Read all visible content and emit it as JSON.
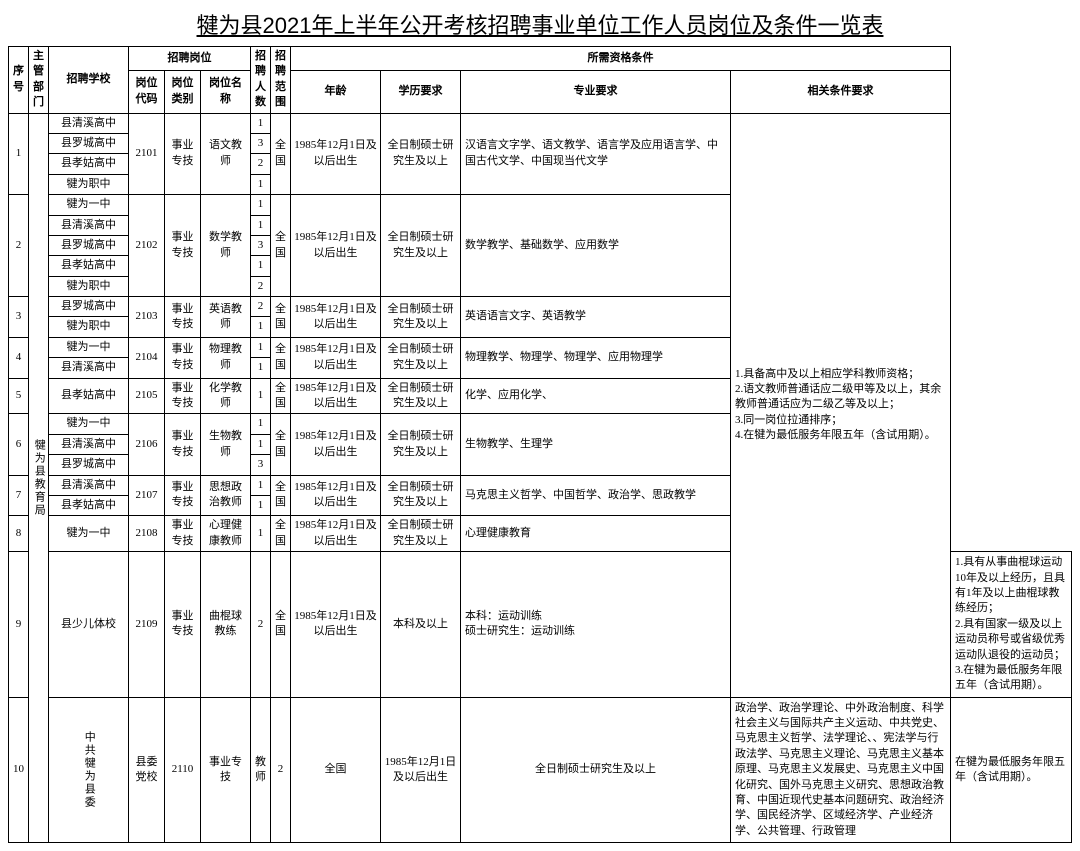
{
  "title": "犍为县2021年上半年公开考核招聘事业单位工作人员岗位及条件一览表",
  "headers": {
    "seq": "序号",
    "dept": "主管部门",
    "school": "招聘学校",
    "position_group": "招聘岗位",
    "code": "岗位代码",
    "type": "岗位类别",
    "name": "岗位名称",
    "count": "招聘人数",
    "scope": "招聘范围",
    "qualification_group": "所需资格条件",
    "age": "年龄",
    "edu": "学历要求",
    "major": "专业要求",
    "req": "相关条件要求"
  },
  "dept1": "犍为县教育局",
  "dept2": "中共犍为县委",
  "age_text": "1985年12月1日及以后出生",
  "edu_text": "全日制硕士研究生及以上",
  "scope_text": "全国",
  "type_text": "事业专技",
  "req_main": "1.具备高中及以上相应学科教师资格；\n2.语文教师普通话应二级甲等及以上，其余教师普通话应为二级乙等及以上；\n3.同一岗位拉通排序；\n4.在犍为最低服务年限五年（含试用期）。",
  "r1": {
    "schools": [
      "县清溪高中",
      "县罗城高中",
      "县孝姑高中",
      "犍为职中"
    ],
    "code": "2101",
    "name": "语文教师",
    "counts": [
      "1",
      "3",
      "2",
      "1"
    ],
    "major": "汉语言文字学、语文教学、语言学及应用语言学、中国古代文学、中国现当代文学"
  },
  "r2": {
    "schools": [
      "犍为一中",
      "县清溪高中",
      "县罗城高中",
      "县孝姑高中",
      "犍为职中"
    ],
    "code": "2102",
    "name": "数学教师",
    "counts": [
      "1",
      "1",
      "3",
      "1",
      "2"
    ],
    "major": "数学教学、基础数学、应用数学"
  },
  "r3": {
    "schools": [
      "县罗城高中",
      "犍为职中"
    ],
    "code": "2103",
    "name": "英语教师",
    "counts": [
      "2",
      "1"
    ],
    "major": "英语语言文字、英语教学"
  },
  "r4": {
    "schools": [
      "犍为一中",
      "县清溪高中"
    ],
    "code": "2104",
    "name": "物理教师",
    "counts": [
      "1",
      "1"
    ],
    "major": "物理教学、物理学、物理学、应用物理学"
  },
  "r5": {
    "schools": [
      "县孝姑高中"
    ],
    "code": "2105",
    "name": "化学教师",
    "counts": [
      "1"
    ],
    "major": "化学、应用化学、"
  },
  "r6": {
    "schools": [
      "犍为一中",
      "县清溪高中",
      "县罗城高中"
    ],
    "code": "2106",
    "name": "生物教师",
    "counts": [
      "1",
      "1",
      "3"
    ],
    "major": "生物教学、生理学"
  },
  "r7": {
    "schools": [
      "县清溪高中",
      "县孝姑高中"
    ],
    "code": "2107",
    "name": "思想政治教师",
    "counts": [
      "1",
      "1"
    ],
    "major": "马克思主义哲学、中国哲学、政治学、思政教学"
  },
  "r8": {
    "schools": [
      "犍为一中"
    ],
    "code": "2108",
    "name": "心理健康教师",
    "counts": [
      "1"
    ],
    "major": "心理健康教育"
  },
  "r9": {
    "school": "县少儿体校",
    "code": "2109",
    "name": "曲棍球教练",
    "count": "2",
    "edu": "本科及以上",
    "major": "本科：运动训练\n硕士研究生：运动训练",
    "req": "1.具有从事曲棍球运动10年及以上经历，且具有1年及以上曲棍球教练经历；\n2.具有国家一级及以上运动员称号或省级优秀运动队退役的运动员；\n3.在犍为最低服务年限五年（含试用期）。"
  },
  "r10": {
    "school": "县委党校",
    "code": "2110",
    "name": "教师",
    "count": "2",
    "major": "政治学、政治学理论、中外政治制度、科学社会主义与国际共产主义运动、中共党史、马克思主义哲学、法学理论、、宪法学与行政法学、马克思主义理论、马克思主义基本原理、马克思主义发展史、马克思主义中国化研究、国外马克思主义研究、思想政治教育、中国近现代史基本问题研究、政治经济学、国民经济学、区域经济学、产业经济学、公共管理、行政管理",
    "req": "在犍为最低服务年限五年（含试用期）。"
  }
}
